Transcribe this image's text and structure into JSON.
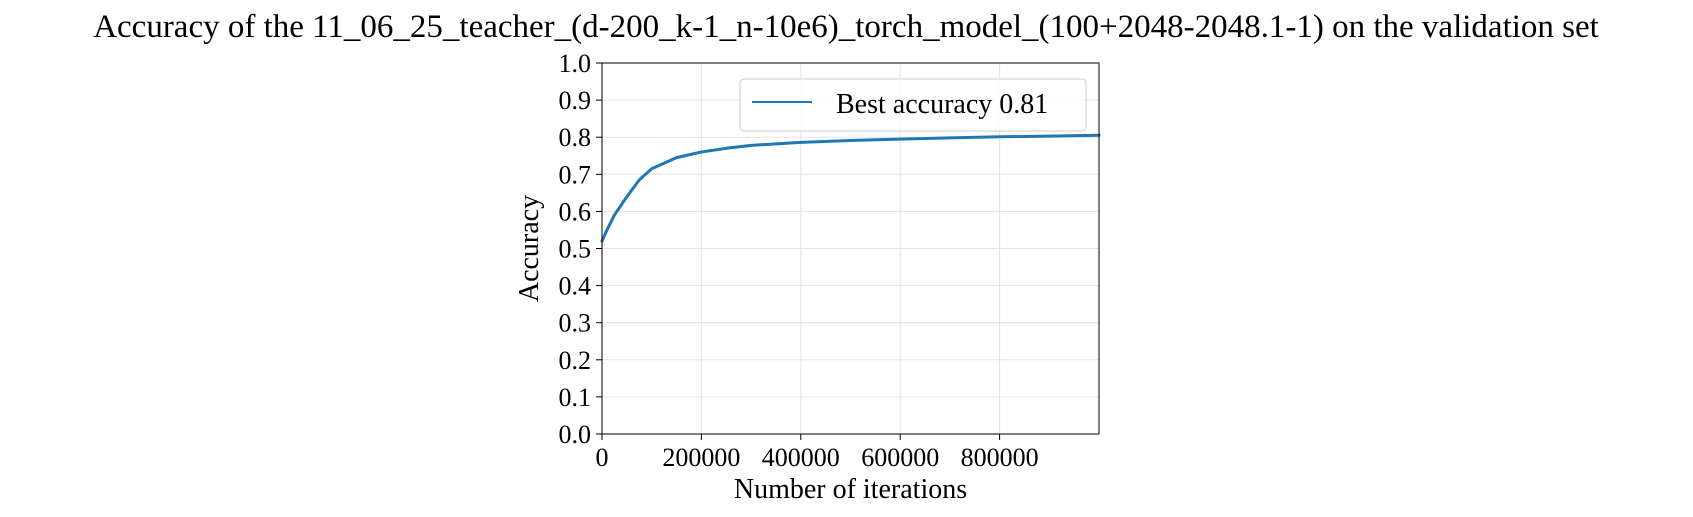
{
  "chart_data": {
    "type": "line",
    "title": "Accuracy of the 11_06_25_teacher_(d-200_k-1_n-10e6)_torch_model_(100+2048-2048.1-1) on the validation set",
    "xlabel": "Number of iterations",
    "ylabel": "Accuracy",
    "xlim": [
      0,
      1000000
    ],
    "ylim": [
      0.0,
      1.0
    ],
    "x_ticks": [
      0,
      200000,
      400000,
      600000,
      800000
    ],
    "x_tick_labels": [
      "0",
      "200000",
      "400000",
      "600000",
      "800000"
    ],
    "y_ticks": [
      0.0,
      0.1,
      0.2,
      0.3,
      0.4,
      0.5,
      0.6,
      0.7,
      0.8,
      0.9,
      1.0
    ],
    "y_tick_labels": [
      "0.0",
      "0.1",
      "0.2",
      "0.3",
      "0.4",
      "0.5",
      "0.6",
      "0.7",
      "0.8",
      "0.9",
      "1.0"
    ],
    "grid": true,
    "legend_position": "top-right",
    "series": [
      {
        "name": "Best accuracy 0.81",
        "color": "#1f77b4",
        "x": [
          0,
          10000,
          25000,
          50000,
          75000,
          100000,
          150000,
          200000,
          250000,
          300000,
          400000,
          500000,
          600000,
          700000,
          800000,
          900000,
          1000000
        ],
        "y": [
          0.52,
          0.55,
          0.59,
          0.64,
          0.685,
          0.715,
          0.745,
          0.76,
          0.77,
          0.778,
          0.786,
          0.791,
          0.795,
          0.798,
          0.801,
          0.803,
          0.805
        ]
      }
    ]
  }
}
